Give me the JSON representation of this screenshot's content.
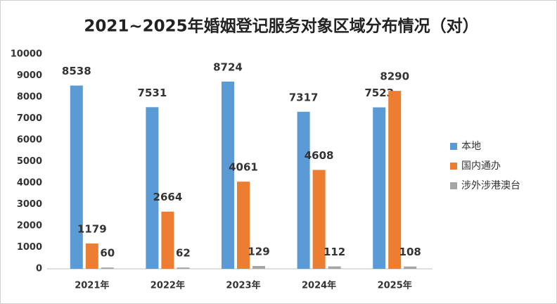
{
  "chart_data": {
    "type": "bar",
    "title": "2021~2025年婚姻登记服务对象区域分布情况（对）",
    "categories": [
      "2021年",
      "2022年",
      "2023年",
      "2024年",
      "2025年"
    ],
    "series": [
      {
        "name": "本地",
        "color": "#5b9bd5",
        "values": [
          8538,
          7531,
          8724,
          7317,
          7523
        ]
      },
      {
        "name": "国内通办",
        "color": "#ed7d31",
        "values": [
          1179,
          2664,
          4061,
          4608,
          8290
        ]
      },
      {
        "name": "涉外涉港澳台",
        "color": "#a5a5a5",
        "values": [
          60,
          62,
          129,
          112,
          108
        ]
      }
    ],
    "ylim": [
      0,
      10000
    ],
    "yticks": [
      0,
      1000,
      2000,
      3000,
      4000,
      5000,
      6000,
      7000,
      8000,
      9000,
      10000
    ],
    "grid": false,
    "legend": "right"
  }
}
